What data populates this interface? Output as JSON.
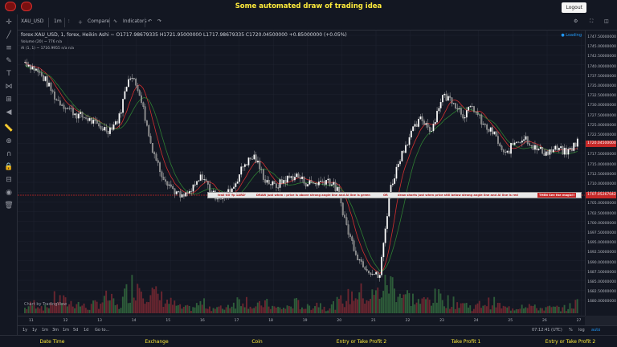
{
  "header": {
    "title": "Some automated draw of trading idea",
    "logout_label": "Logout"
  },
  "toolbar": {
    "symbol": "XAU_USD",
    "interval": "1m",
    "compare_label": "Compare",
    "indicators_label": "Indicators"
  },
  "legend": {
    "main": "forex:XAU_USD, 1, forex, Heikin Ashi ~   O1717.98679335  H1721.95000000  L1717.98679335  C1720.04500000  +0.85000000 (+0.05%)",
    "volume": "Volume (20) ~   776   n/a",
    "ai": "AI (1, 1) ~   1716.9955   n/a   n/a",
    "loading": "● Loading"
  },
  "price_axis": {
    "ticks": [
      "1747.50000000",
      "1745.00000000",
      "1742.50000000",
      "1740.00000000",
      "1737.50000000",
      "1735.00000000",
      "1732.50000000",
      "1730.00000000",
      "1727.50000000",
      "1725.00000000",
      "1722.50000000",
      "1720.00000000",
      "1717.50000000",
      "1715.00000000",
      "1712.50000000",
      "1710.00000000",
      "1707.50000000",
      "1705.00000000",
      "1702.50000000",
      "1700.00000000",
      "1697.50000000",
      "1695.00000000",
      "1692.50000000",
      "1690.00000000",
      "1687.50000000",
      "1685.00000000",
      "1682.50000000",
      "1680.00000000"
    ],
    "current_tag": "1720.04500000",
    "line_tag": "1707.05267042"
  },
  "time_axis": {
    "ticks": [
      "11",
      "12",
      "13",
      "14",
      "15",
      "16",
      "17",
      "18",
      "19",
      "20",
      "21",
      "22",
      "23",
      "24",
      "25",
      "26",
      "27"
    ]
  },
  "banner": {
    "part1": "trail till 'fp 1ARD'",
    "part2": "DRAW just when : price is above strong angle line and AI line is green",
    "part3": "OR",
    "part4": "draw shorts just when price still below strong angle line and AI line is red",
    "final": "THEN See the magic!!"
  },
  "watermark": "Chart by TradingView",
  "range_bar": {
    "ranges": [
      "1y",
      "1y",
      "1m",
      "3m",
      "1m",
      "5d",
      "1d",
      "Go to..."
    ],
    "clock": "07:12:41 (UTC)",
    "pct": "%",
    "log": "log",
    "auto": "auto"
  },
  "bottom_bar": [
    "Date Time",
    "Exchange",
    "Coin",
    "Entry or Take Profit 2",
    "Take Profit 1",
    "Entry or Take Profit 2"
  ],
  "chart_data": {
    "type": "candlestick",
    "symbol": "XAU_USD",
    "ylim": [
      1678,
      1748
    ],
    "x_labels": [
      "11",
      "12",
      "13",
      "14",
      "15",
      "16",
      "17",
      "18",
      "19",
      "20",
      "21",
      "22",
      "23",
      "24",
      "25",
      "26",
      "27"
    ],
    "close_path": [
      1741,
      1739,
      1736,
      1731,
      1729,
      1727,
      1726,
      1724,
      1723,
      1726,
      1738,
      1733,
      1720,
      1712,
      1708,
      1705,
      1707,
      1711,
      1706,
      1705,
      1708,
      1714,
      1716,
      1710,
      1708,
      1710,
      1711,
      1709,
      1709,
      1710,
      1707,
      1696,
      1689,
      1686,
      1684,
      1707,
      1716,
      1722,
      1726,
      1723,
      1732,
      1731,
      1727,
      1729,
      1724,
      1722,
      1716,
      1720,
      1721,
      1718,
      1717,
      1718,
      1717,
      1720
    ],
    "volume_path": [
      1,
      2,
      1,
      3,
      2,
      2,
      1,
      2,
      3,
      1,
      5,
      6,
      4,
      3,
      2,
      1,
      1,
      2,
      1,
      1,
      2,
      3,
      1,
      2,
      1,
      1,
      2,
      1,
      2,
      1,
      2,
      3,
      4,
      3,
      4,
      6,
      4,
      3,
      2,
      3,
      3,
      2,
      2,
      1,
      2,
      2,
      1,
      1,
      2,
      1,
      1,
      1,
      1,
      2
    ],
    "colors": {
      "up": "#ffffff",
      "down": "#808080",
      "ma": "#d32f2f",
      "ai": "#2e7d32"
    }
  }
}
